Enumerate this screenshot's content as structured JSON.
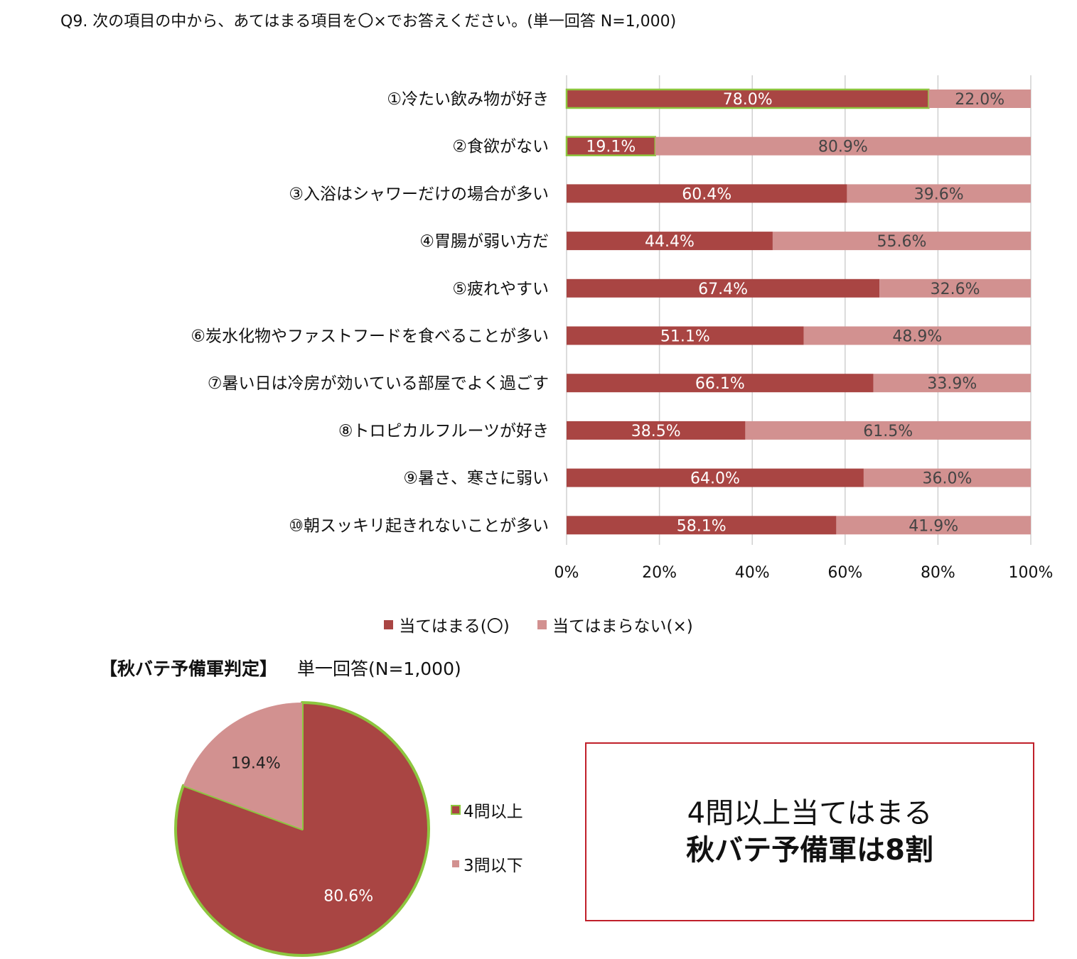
{
  "question": "Q9. 次の項目の中から、あてはまる項目を〇×でお答えください。(単一回答 N=1,000)",
  "colors": {
    "yes": "#a94543",
    "no": "#d29190",
    "highlight": "#8dc63f",
    "grid": "#d0d0d0",
    "box_border": "#c0202a"
  },
  "chart_data": [
    {
      "type": "bar",
      "orientation": "horizontal",
      "stacked": "percent",
      "categories": [
        "①冷たい飲み物が好き",
        "②食欲がない",
        "③入浴はシャワーだけの場合が多い",
        "④胃腸が弱い方だ",
        "⑤疲れやすい",
        "⑥炭水化物やファストフードを食べることが多い",
        "⑦暑い日は冷房が効いている部屋でよく過ごす",
        "⑧トロピカルフルーツが好き",
        "⑨暑さ、寒さに弱い",
        "⑩朝スッキリ起きれないことが多い"
      ],
      "series": [
        {
          "name": "当てはまる(〇)",
          "values": [
            78.0,
            19.1,
            60.4,
            44.4,
            67.4,
            51.1,
            66.1,
            38.5,
            64.0,
            58.1
          ],
          "labels": [
            "78.0%",
            "19.1%",
            "60.4%",
            "44.4%",
            "67.4%",
            "51.1%",
            "66.1%",
            "38.5%",
            "64.0%",
            "58.1%"
          ]
        },
        {
          "name": "当てはまらない(×)",
          "values": [
            22.0,
            80.9,
            39.6,
            55.6,
            32.6,
            48.9,
            33.9,
            61.5,
            36.0,
            41.9
          ],
          "labels": [
            "22.0%",
            "80.9%",
            "39.6%",
            "55.6%",
            "32.6%",
            "48.9%",
            "33.9%",
            "61.5%",
            "36.0%",
            "41.9%"
          ]
        }
      ],
      "highlighted": [
        0,
        1
      ],
      "xlim": [
        0,
        100
      ],
      "xticks": [
        "0%",
        "20%",
        "40%",
        "60%",
        "80%",
        "100%"
      ],
      "grid": true,
      "legend": "bottom",
      "legend_labels": [
        "当てはまる(〇)",
        "当てはまらない(×)"
      ]
    },
    {
      "type": "pie",
      "title": "【秋バテ予備軍判定】",
      "subtitle": "単一回答(N=1,000)",
      "slices": [
        {
          "name": "4問以上",
          "value": 80.6,
          "label": "80.6%"
        },
        {
          "name": "3問以下",
          "value": 19.4,
          "label": "19.4%"
        }
      ],
      "legend": "right",
      "legend_labels": [
        "4問以上",
        "3問以下"
      ]
    }
  ],
  "callout": {
    "line1": "4問以上当てはまる",
    "line2": "秋バテ予備軍は8割"
  }
}
